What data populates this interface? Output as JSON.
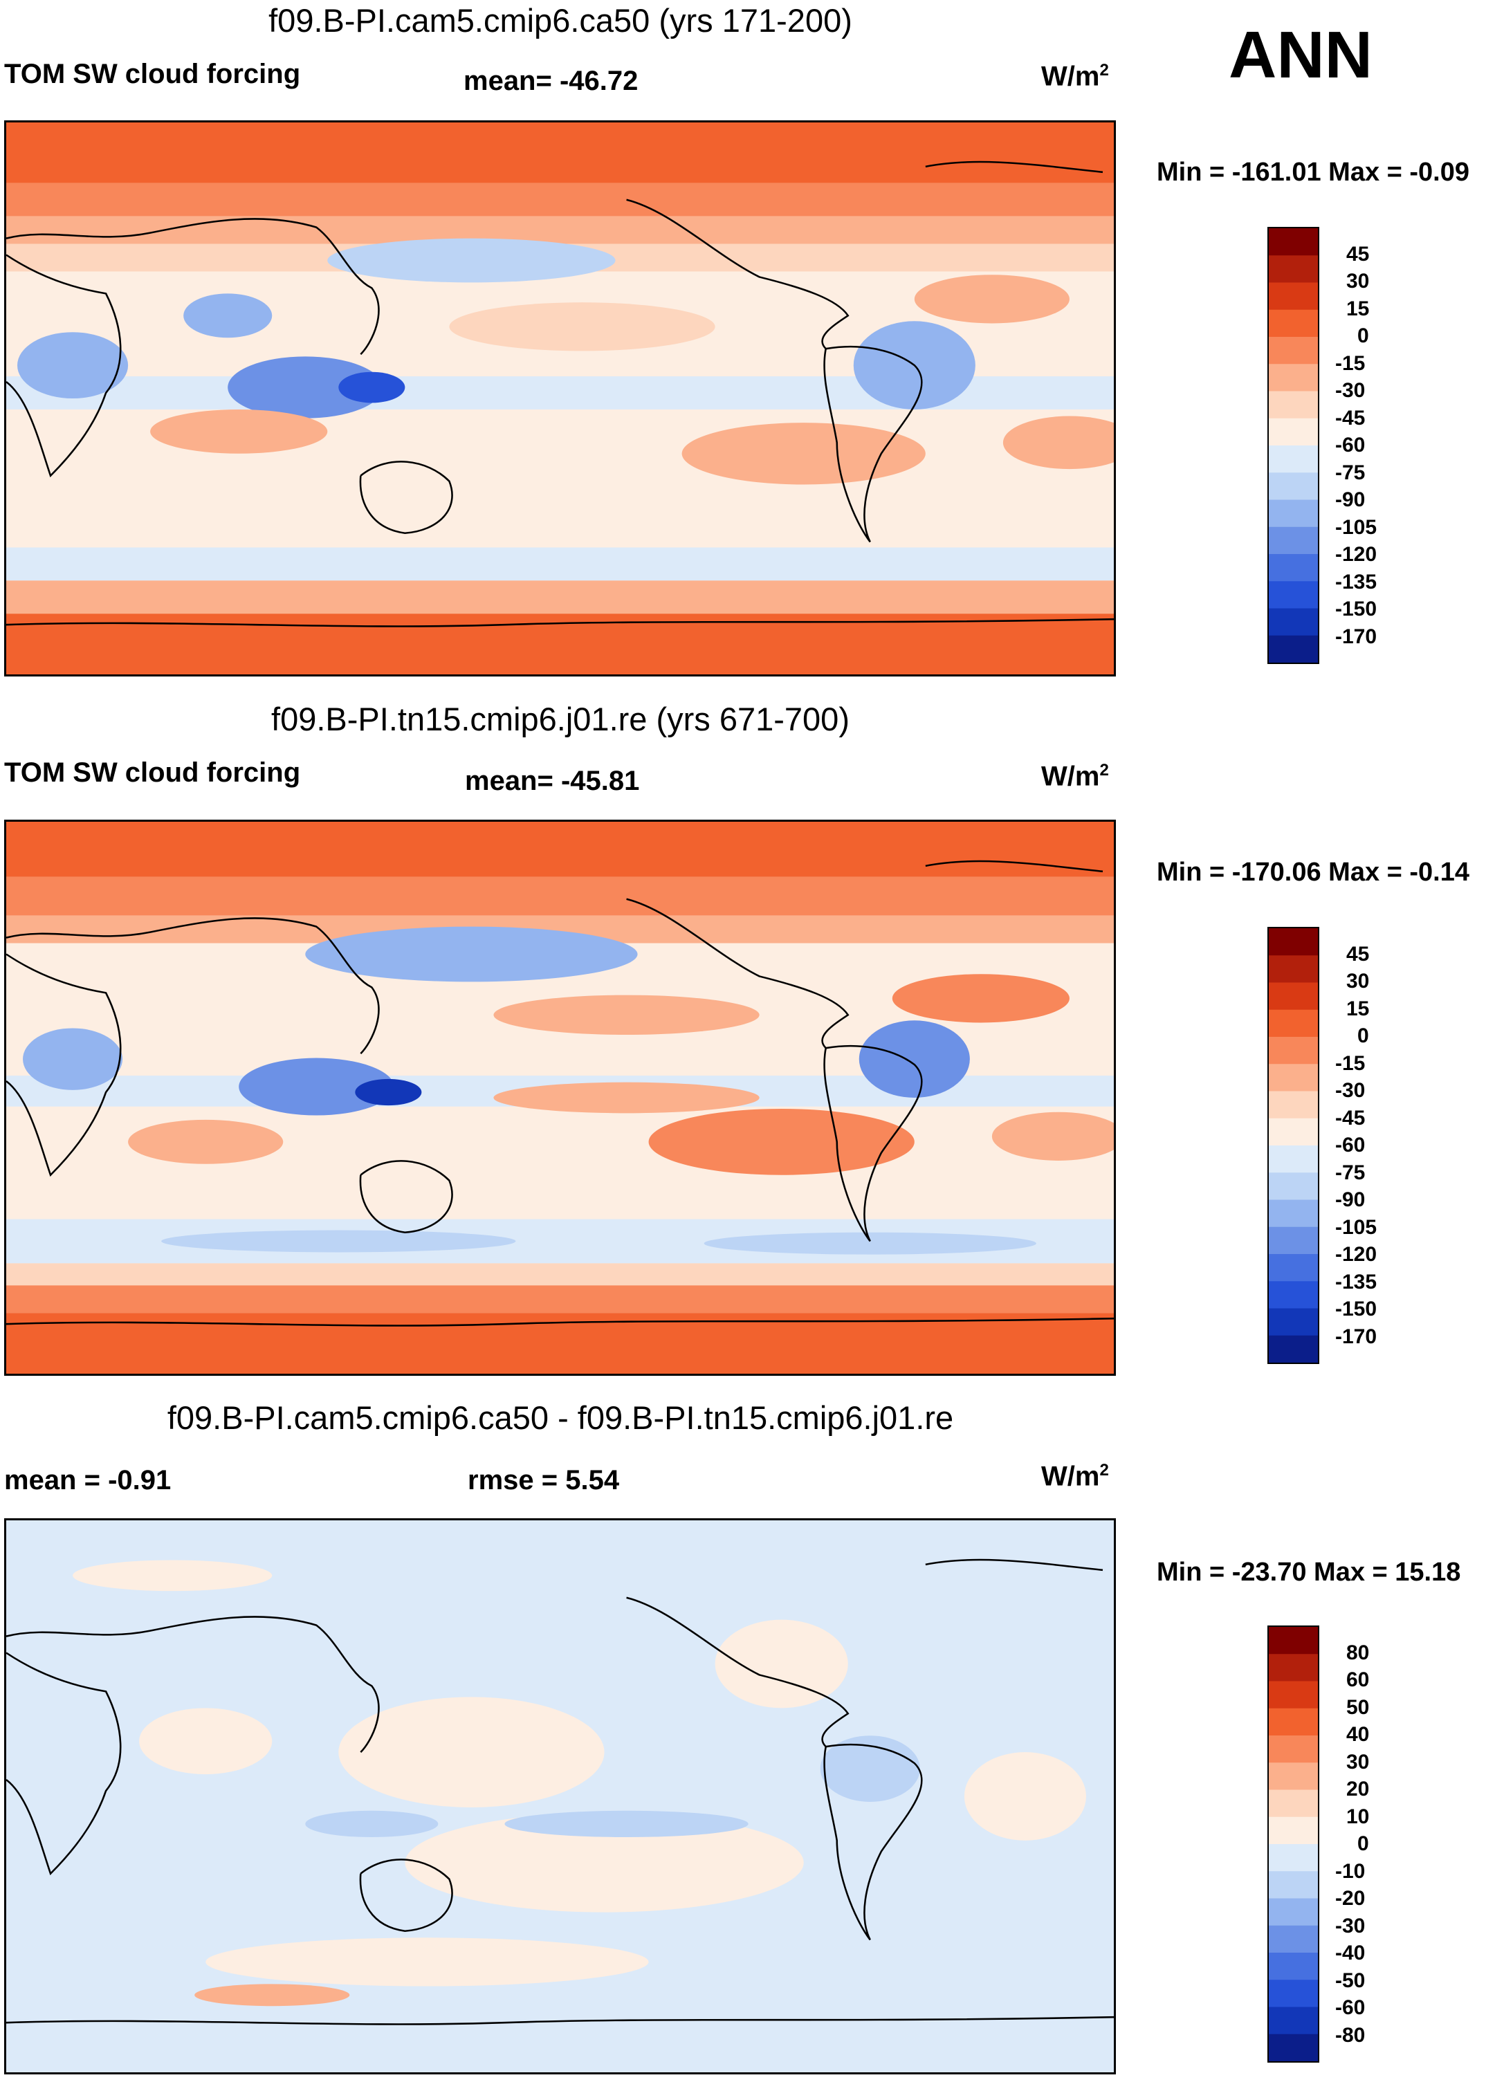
{
  "season": "ANN",
  "units_base": "W/m",
  "units_exp": "2",
  "palette_warm": [
    "#7f0000",
    "#b2200c",
    "#d93a14",
    "#f2622e",
    "#f8875a",
    "#fbb08c",
    "#fdd6be",
    "#fdeee2"
  ],
  "palette_cool": [
    "#dceaf9",
    "#bcd4f5",
    "#93b4ef",
    "#6c91e6",
    "#4670e0",
    "#2652d8",
    "#1237b8",
    "#0b1e8a"
  ],
  "panels": [
    {
      "title": "f09.B-PI.cam5.cmip6.ca50 (yrs 171-200)",
      "left_label": "TOM SW cloud forcing",
      "center_label": "mean= -46.72",
      "minmax": "Min = -161.01 Max =  -0.09"
    },
    {
      "title": "f09.B-PI.tn15.cmip6.j01.re (yrs 671-700)",
      "left_label": "TOM SW cloud forcing",
      "center_label": "mean= -45.81",
      "minmax": "Min = -170.06 Max =  -0.14"
    },
    {
      "title": "f09.B-PI.cam5.cmip6.ca50 - f09.B-PI.tn15.cmip6.j01.re",
      "left_label": "mean =  -0.91",
      "center_label": "rmse =   5.54",
      "minmax": "Min = -23.70 Max =  15.18"
    }
  ],
  "chart_data": [
    {
      "type": "heatmap",
      "title": "f09.B-PI.cam5.cmip6.ca50 (yrs 171-200)",
      "variable": "TOM SW cloud forcing",
      "mean": -46.72,
      "min": -161.01,
      "max": -0.09,
      "units": "W/m2",
      "colorbar_levels": [
        "45",
        "30",
        "15",
        "0",
        "-15",
        "-30",
        "-45",
        "-60",
        "-75",
        "-90",
        "-105",
        "-120",
        "-135",
        "-150",
        "-170"
      ]
    },
    {
      "type": "heatmap",
      "title": "f09.B-PI.tn15.cmip6.j01.re (yrs 671-700)",
      "variable": "TOM SW cloud forcing",
      "mean": -45.81,
      "min": -170.06,
      "max": -0.14,
      "units": "W/m2",
      "colorbar_levels": [
        "45",
        "30",
        "15",
        "0",
        "-15",
        "-30",
        "-45",
        "-60",
        "-75",
        "-90",
        "-105",
        "-120",
        "-135",
        "-150",
        "-170"
      ]
    },
    {
      "type": "heatmap",
      "title": "f09.B-PI.cam5.cmip6.ca50 - f09.B-PI.tn15.cmip6.j01.re",
      "mean": -0.91,
      "rmse": 5.54,
      "min": -23.7,
      "max": 15.18,
      "units": "W/m2",
      "colorbar_levels": [
        "80",
        "60",
        "50",
        "40",
        "30",
        "20",
        "10",
        "0",
        "-10",
        "-20",
        "-30",
        "-40",
        "-50",
        "-60",
        "-80"
      ]
    }
  ]
}
